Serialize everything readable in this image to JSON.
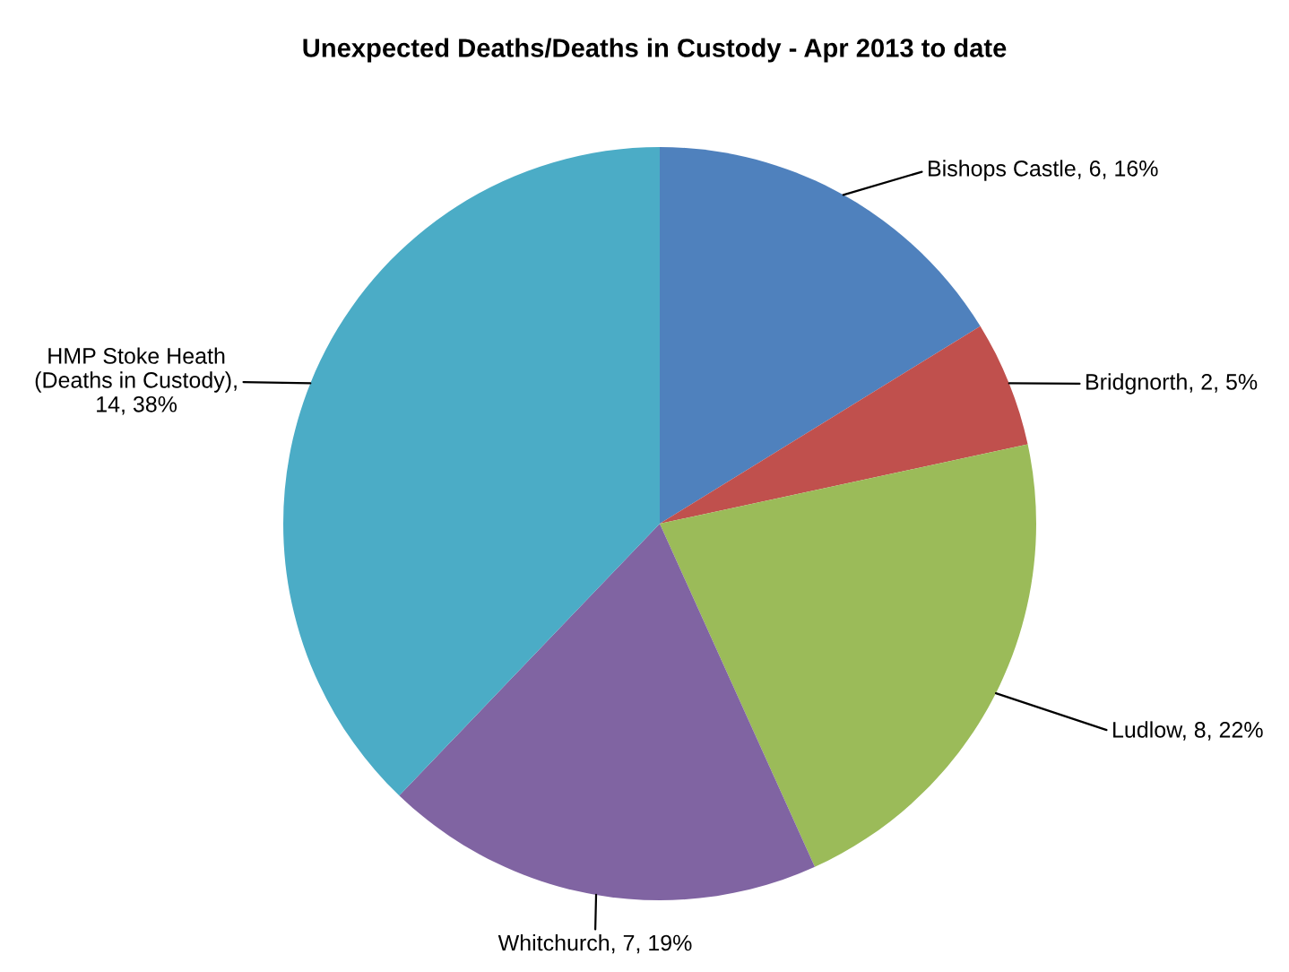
{
  "chart_data": {
    "type": "pie",
    "title": "Unexpected Deaths/Deaths in Custody - Apr 2013 to date",
    "categories": [
      "Bishops Castle",
      "Bridgnorth",
      "Ludlow",
      "Whitchurch",
      "HMP Stoke Heath\n(Deaths in Custody)"
    ],
    "values": [
      6,
      2,
      8,
      7,
      14
    ],
    "colors": [
      "#4f81bd",
      "#c0504d",
      "#9bbb59",
      "#8064a2",
      "#4bacc6"
    ],
    "value_labels": [
      ", 6, 16%",
      ", 2, 5%",
      ", 8, 22%",
      ", 7, 19%",
      ",\n14, 38%"
    ]
  }
}
